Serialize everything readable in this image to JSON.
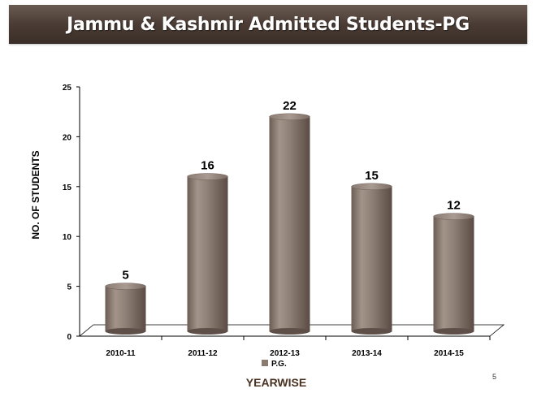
{
  "slide": {
    "title": "Jammu & Kashmir Admitted Students-PG",
    "page_number": "5"
  },
  "colors": {
    "title_bar": "#4a3c34",
    "bar_main": "#8a7a70",
    "bar_light": "#b3a59c",
    "bar_dark": "#5e5048",
    "axis_text": "#000000"
  },
  "chart_data": {
    "type": "bar",
    "style": "3d-cylinder",
    "categories": [
      "2010-11",
      "2011-12",
      "2012-13",
      "2013-14",
      "2014-15"
    ],
    "series": [
      {
        "name": "P.G.",
        "values": [
          5,
          16,
          22,
          15,
          12
        ]
      }
    ],
    "data_labels": [
      "5",
      "16",
      "22",
      "15",
      "12"
    ],
    "title": "Jammu & Kashmir Admitted Students-PG",
    "xlabel": "YEARWISE",
    "ylabel": "NO. OF STUDENTS",
    "ylim": [
      0,
      25
    ],
    "yticks": [
      0,
      5,
      10,
      15,
      20,
      25
    ],
    "grid": false,
    "legend": "bottom"
  }
}
